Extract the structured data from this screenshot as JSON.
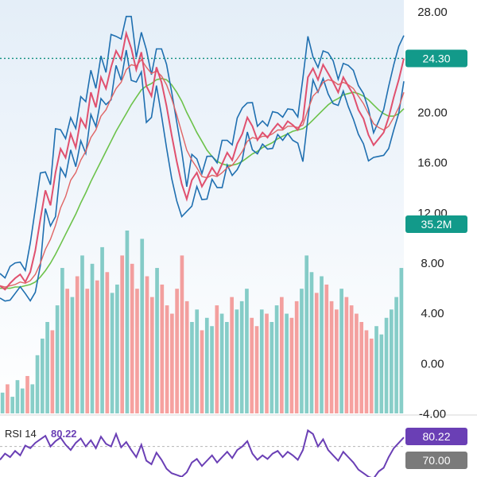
{
  "colors": {
    "background_top": "#e4eef8",
    "background_bottom": "#ffffff",
    "price_band": "#1f6fb0",
    "price_line": "#e0506e",
    "ma_fast": "#e06464",
    "ma_slow": "#6cc24a",
    "volume_up": "#26a69a",
    "volume_down": "#ef5350",
    "price_badge": "#129a8a",
    "volume_badge": "#129a8a",
    "rsi_line": "#6a3fb5",
    "rsi_badge": "#6a3fb5",
    "rsi_level_badge": "#7a7a7a",
    "dotted_line": "#0f8f7f"
  },
  "chart_data": [
    {
      "type": "line",
      "title": "",
      "y_axis_position": "right",
      "ylim": [
        -4,
        29
      ],
      "y_ticks": [
        "28.00",
        "24.00",
        "20.00",
        "16.00",
        "12.00",
        "8.00",
        "4.00",
        "0.00",
        "-4.00"
      ],
      "grid": false,
      "current_price": {
        "label": "24.30",
        "value": 24.3
      },
      "series": [
        {
          "kind": "close",
          "values": [
            6.2,
            5.9,
            6.4,
            6.8,
            7.1,
            6.5,
            7.3,
            9.0,
            11.5,
            13.8,
            12.6,
            15.2,
            17.1,
            16.4,
            18.3,
            17.2,
            19.5,
            18.8,
            21.6,
            20.4,
            22.8,
            21.9,
            23.6,
            24.9,
            24.2,
            26.3,
            25.1,
            23.4,
            24.8,
            22.1,
            21.3,
            23.6,
            22.4,
            20.5,
            18.2,
            16.1,
            14.3,
            13.1,
            14.6,
            15.2,
            14.1,
            14.8,
            15.6,
            15.0,
            15.9,
            16.8,
            16.2,
            17.5,
            18.3,
            19.6,
            18.9,
            17.8,
            18.4,
            18.0,
            18.6,
            19.1,
            18.7,
            19.3,
            19.0,
            18.6,
            19.4,
            22.8,
            23.5,
            22.6,
            23.8,
            23.1,
            22.4,
            21.6,
            22.8,
            22.1,
            21.4,
            20.2,
            19.5,
            18.2,
            17.4,
            17.9,
            18.4,
            19.6,
            21.2,
            22.6,
            24.3
          ]
        },
        {
          "kind": "moving_average_fast",
          "values": [
            6.2,
            6.1,
            6.2,
            6.3,
            6.5,
            6.4,
            6.6,
            7.1,
            8.0,
            9.1,
            9.9,
            11.0,
            12.4,
            13.3,
            14.6,
            15.2,
            16.2,
            16.9,
            18.0,
            18.6,
            19.7,
            20.2,
            21.1,
            21.9,
            22.4,
            23.4,
            23.8,
            23.7,
            24.2,
            23.6,
            23.1,
            23.3,
            22.9,
            22.2,
            21.1,
            19.8,
            18.4,
            17.0,
            16.2,
            15.6,
            14.9,
            14.8,
            15.0,
            14.9,
            15.2,
            15.6,
            15.8,
            16.3,
            16.9,
            17.7,
            18.0,
            17.9,
            18.1,
            18.1,
            18.3,
            18.6,
            18.6,
            18.9,
            18.9,
            18.8,
            19.0,
            20.2,
            21.3,
            21.7,
            22.4,
            22.6,
            22.5,
            22.2,
            22.4,
            22.2,
            21.9,
            21.3,
            20.7,
            19.9,
            19.1,
            18.8,
            18.6,
            18.9,
            19.6,
            20.4,
            21.6
          ]
        },
        {
          "kind": "moving_average_slow",
          "values": [
            6.0,
            6.0,
            6.0,
            6.1,
            6.1,
            6.2,
            6.3,
            6.5,
            6.9,
            7.4,
            8.0,
            8.7,
            9.5,
            10.3,
            11.1,
            11.9,
            12.8,
            13.6,
            14.5,
            15.3,
            16.1,
            16.9,
            17.7,
            18.5,
            19.2,
            19.9,
            20.6,
            21.2,
            21.8,
            22.1,
            22.3,
            22.6,
            22.7,
            22.6,
            22.2,
            21.6,
            20.9,
            20.0,
            19.2,
            18.4,
            17.7,
            17.0,
            16.5,
            16.1,
            15.9,
            15.8,
            15.8,
            15.9,
            16.1,
            16.4,
            16.7,
            16.9,
            17.2,
            17.4,
            17.6,
            17.9,
            18.1,
            18.3,
            18.5,
            18.6,
            18.7,
            19.0,
            19.4,
            19.8,
            20.2,
            20.6,
            20.9,
            21.1,
            21.4,
            21.5,
            21.6,
            21.5,
            21.3,
            21.0,
            20.6,
            20.2,
            19.9,
            19.7,
            19.7,
            19.9,
            20.3
          ]
        }
      ]
    },
    {
      "type": "bar",
      "title": "",
      "current_volume": {
        "label": "35.2M"
      },
      "values": [
        5,
        7,
        4,
        8,
        6,
        9,
        7,
        14,
        18,
        22,
        20,
        26,
        35,
        30,
        28,
        33,
        38,
        30,
        36,
        32,
        40,
        34,
        29,
        31,
        38,
        44,
        36,
        30,
        42,
        33,
        28,
        35,
        31,
        26,
        24,
        30,
        38,
        27,
        22,
        25,
        20,
        23,
        21,
        26,
        24,
        22,
        28,
        25,
        27,
        30,
        23,
        21,
        25,
        24,
        22,
        26,
        28,
        24,
        23,
        27,
        30,
        38,
        34,
        29,
        33,
        31,
        27,
        25,
        30,
        28,
        26,
        24,
        22,
        20,
        18,
        21,
        19,
        23,
        25,
        28,
        35
      ],
      "up": [
        true,
        false,
        true,
        true,
        true,
        false,
        true,
        true,
        true,
        true,
        false,
        true,
        true,
        false,
        true,
        false,
        true,
        false,
        true,
        false,
        true,
        false,
        true,
        true,
        false,
        true,
        false,
        false,
        true,
        false,
        false,
        true,
        false,
        false,
        false,
        false,
        false,
        false,
        true,
        true,
        false,
        true,
        true,
        false,
        true,
        true,
        false,
        true,
        true,
        true,
        false,
        false,
        true,
        false,
        true,
        true,
        false,
        true,
        false,
        false,
        true,
        true,
        true,
        false,
        true,
        false,
        false,
        false,
        true,
        false,
        false,
        false,
        false,
        false,
        false,
        true,
        true,
        true,
        true,
        true,
        true
      ]
    },
    {
      "type": "line",
      "title": "",
      "label": "RSI 14",
      "current_value": "80.22",
      "level_label": "70.00",
      "ylim": [
        0,
        100
      ],
      "level": 70,
      "values": [
        55,
        62,
        58,
        65,
        60,
        71,
        68,
        74,
        78,
        82,
        70,
        76,
        80,
        72,
        66,
        74,
        79,
        70,
        77,
        68,
        81,
        73,
        70,
        84,
        69,
        75,
        66,
        58,
        72,
        54,
        50,
        63,
        55,
        45,
        40,
        38,
        36,
        41,
        52,
        56,
        48,
        54,
        60,
        52,
        58,
        64,
        57,
        66,
        70,
        76,
        62,
        55,
        60,
        56,
        62,
        65,
        58,
        64,
        60,
        55,
        66,
        88,
        84,
        70,
        78,
        66,
        60,
        54,
        64,
        58,
        52,
        44,
        40,
        36,
        34,
        42,
        46,
        58,
        68,
        74,
        80.22
      ]
    }
  ]
}
